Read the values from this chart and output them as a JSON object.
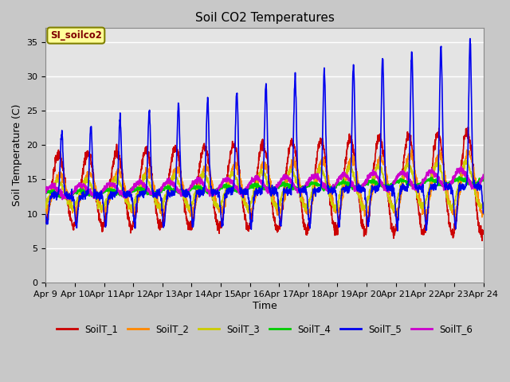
{
  "title": "Soil CO2 Temperatures",
  "xlabel": "Time",
  "ylabel": "Soil Temperature (C)",
  "ylim": [
    0,
    37
  ],
  "yticks": [
    0,
    5,
    10,
    15,
    20,
    25,
    30,
    35
  ],
  "annotation_text": "SI_soilco2",
  "fig_bg_color": "#c8c8c8",
  "plot_bg_color": "#e4e4e4",
  "grid_color": "#ffffff",
  "series": {
    "SoilT_1": {
      "color": "#cc0000",
      "lw": 1.2
    },
    "SoilT_2": {
      "color": "#ff8800",
      "lw": 1.2
    },
    "SoilT_3": {
      "color": "#cccc00",
      "lw": 1.2
    },
    "SoilT_4": {
      "color": "#00cc00",
      "lw": 1.5
    },
    "SoilT_5": {
      "color": "#0000ee",
      "lw": 1.2
    },
    "SoilT_6": {
      "color": "#cc00cc",
      "lw": 1.5
    }
  },
  "xtick_labels": [
    "Apr 9",
    "Apr 10",
    "Apr 11",
    "Apr 12",
    "Apr 13",
    "Apr 14",
    "Apr 15",
    "Apr 16",
    "Apr 17",
    "Apr 18",
    "Apr 19",
    "Apr 20",
    "Apr 21",
    "Apr 22",
    "Apr 23",
    "Apr 24"
  ],
  "days_total": 15,
  "points_per_day": 144
}
